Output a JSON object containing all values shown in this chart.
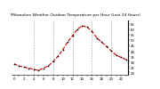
{
  "title": "Milwaukee Weather Outdoor Temperature per Hour (Last 24 Hours)",
  "hours": [
    0,
    1,
    2,
    3,
    4,
    5,
    6,
    7,
    8,
    9,
    10,
    11,
    12,
    13,
    14,
    15,
    16,
    17,
    18,
    19,
    20,
    21,
    22,
    23
  ],
  "temps": [
    28,
    26,
    25,
    24,
    23,
    22,
    24,
    26,
    30,
    35,
    41,
    48,
    54,
    60,
    63,
    62,
    58,
    52,
    48,
    44,
    40,
    36,
    34,
    32
  ],
  "line_color": "#cc0000",
  "marker_color": "#000000",
  "bg_color": "#ffffff",
  "title_bg_color": "#c0c0c0",
  "grid_color": "#888888",
  "title_color": "#000000",
  "title_fontsize": 3.2,
  "tick_fontsize": 2.8,
  "ytick_fontsize": 2.8,
  "ylim": [
    18,
    68
  ],
  "yticks": [
    20,
    25,
    30,
    35,
    40,
    45,
    50,
    55,
    60,
    65
  ],
  "ytick_labels": [
    "20",
    "25",
    "30",
    "35",
    "40",
    "45",
    "50",
    "55",
    "60",
    "65"
  ],
  "grid_hours": [
    4,
    8,
    12,
    16,
    20
  ],
  "right_border_color": "#000000"
}
